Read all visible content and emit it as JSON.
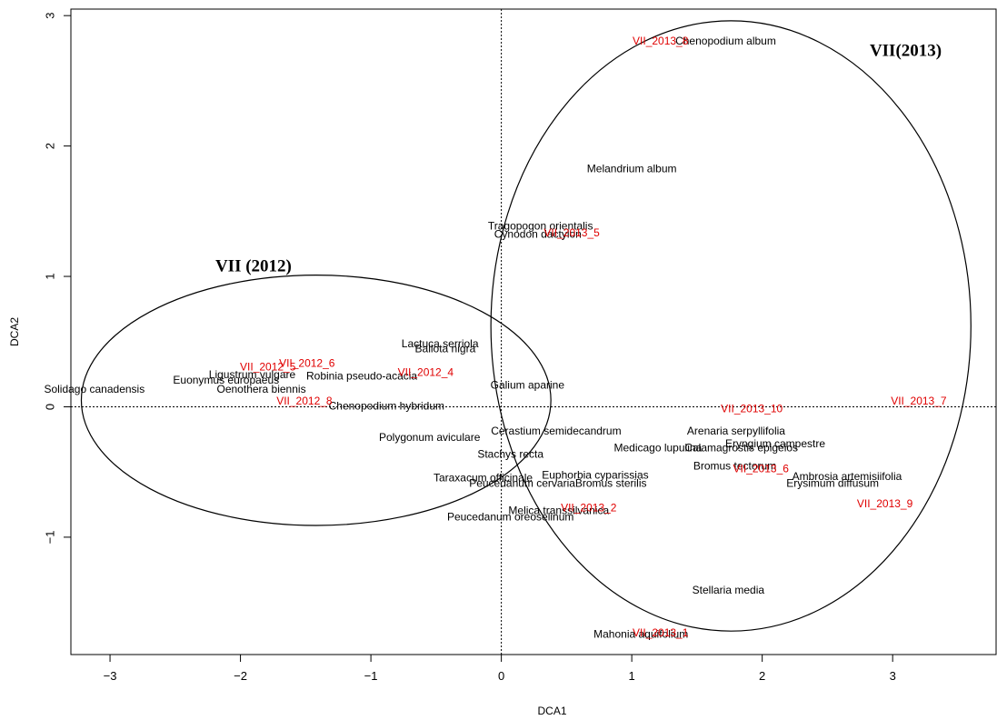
{
  "chart_data": {
    "type": "scatter",
    "title": "",
    "xlabel": "DCA1",
    "ylabel": "DCA2",
    "xlim": [
      -3.3,
      3.8
    ],
    "ylim": [
      -1.9,
      3.05
    ],
    "x_ticks": [
      -3,
      -2,
      -1,
      0,
      1,
      2,
      3
    ],
    "y_ticks": [
      -1,
      0,
      1,
      2,
      3
    ],
    "reference_lines": {
      "x": 0,
      "y": 0,
      "style": "dotted"
    },
    "colors": {
      "species": "#000000",
      "sites": "#e00000",
      "ellipse": "#000000",
      "axes": "#000000"
    },
    "group_labels": [
      {
        "text": "VII (2012)",
        "x": -1.9,
        "y": 1.07
      },
      {
        "text": "VII(2013)",
        "x": 3.1,
        "y": 2.72
      }
    ],
    "ellipses": [
      {
        "group": "VII (2012)",
        "cx": -1.42,
        "cy": 0.05,
        "rx": 1.8,
        "ry": 0.96
      },
      {
        "group": "VII(2013)",
        "cx": 1.76,
        "cy": 0.62,
        "rx": 1.84,
        "ry": 2.34
      }
    ],
    "species": [
      {
        "label": "Chenopodium album",
        "x": 1.72,
        "y": 2.8
      },
      {
        "label": "Melandrium album",
        "x": 1.0,
        "y": 1.82
      },
      {
        "label": "Tragopogon orientalis",
        "x": 0.3,
        "y": 1.38
      },
      {
        "label": "Cynodon dactylon",
        "x": 0.28,
        "y": 1.32
      },
      {
        "label": "Lactuca serriola",
        "x": -0.47,
        "y": 0.48
      },
      {
        "label": "Ballota nigra",
        "x": -0.43,
        "y": 0.44
      },
      {
        "label": "Galium aparine",
        "x": 0.2,
        "y": 0.16
      },
      {
        "label": "Robinia pseudo-acacia",
        "x": -1.07,
        "y": 0.23
      },
      {
        "label": "Oenothera biennis",
        "x": -1.84,
        "y": 0.13
      },
      {
        "label": "Euonymus europaeus",
        "x": -2.11,
        "y": 0.2
      },
      {
        "label": "Ligustrum vulgare",
        "x": -1.91,
        "y": 0.24
      },
      {
        "label": "Solidago canadensis",
        "x": -3.12,
        "y": 0.13
      },
      {
        "label": "Chenopodium hybridum",
        "x": -0.88,
        "y": 0.0
      },
      {
        "label": "Polygonum aviculare",
        "x": -0.55,
        "y": -0.24
      },
      {
        "label": "Arenaria serpyllifolia",
        "x": 1.8,
        "y": -0.19
      },
      {
        "label": "Cerastium semidecandrum",
        "x": 0.42,
        "y": -0.19
      },
      {
        "label": "Eryngium campestre",
        "x": 2.1,
        "y": -0.29
      },
      {
        "label": "Calamagrostis epigeios",
        "x": 1.84,
        "y": -0.32
      },
      {
        "label": "Medicago lupulina",
        "x": 1.2,
        "y": -0.32
      },
      {
        "label": "Stachys recta",
        "x": 0.07,
        "y": -0.37
      },
      {
        "label": "Taraxacum officinale",
        "x": -0.14,
        "y": -0.55
      },
      {
        "label": "Euphorbia cyparissias",
        "x": 0.72,
        "y": -0.53
      },
      {
        "label": "Peucedanum cervaria",
        "x": 0.16,
        "y": -0.59
      },
      {
        "label": "Bromus sterilis",
        "x": 0.84,
        "y": -0.59
      },
      {
        "label": "Bromus tectorum",
        "x": 1.79,
        "y": -0.46
      },
      {
        "label": "Ambrosia artemisiifolia",
        "x": 2.65,
        "y": -0.54
      },
      {
        "label": "Erysimum diffusum",
        "x": 2.54,
        "y": -0.59
      },
      {
        "label": "Melica transsilvanica",
        "x": 0.44,
        "y": -0.8
      },
      {
        "label": "Peucedanum oreoselinum",
        "x": 0.07,
        "y": -0.85
      },
      {
        "label": "Stellaria media",
        "x": 1.74,
        "y": -1.41
      },
      {
        "label": "Mahonia aquifolium",
        "x": 1.07,
        "y": -1.75
      }
    ],
    "sites": [
      {
        "label": "VII_2012_5",
        "x": -1.79,
        "y": 0.3
      },
      {
        "label": "VII_2012_6",
        "x": -1.49,
        "y": 0.33
      },
      {
        "label": "VII_2012_4",
        "x": -0.58,
        "y": 0.26
      },
      {
        "label": "VII_2012_8",
        "x": -1.51,
        "y": 0.04
      },
      {
        "label": "VII_2013_10",
        "x": 1.92,
        "y": -0.02
      },
      {
        "label": "VII_2013_7",
        "x": 3.2,
        "y": 0.04
      },
      {
        "label": "VII_2013_9",
        "x": 2.94,
        "y": -0.75
      },
      {
        "label": "VII_2013_6",
        "x": 1.99,
        "y": -0.48
      },
      {
        "label": "VII_2013_2",
        "x": 0.67,
        "y": -0.78
      },
      {
        "label": "VII_2013_1",
        "x": 1.22,
        "y": -1.74
      },
      {
        "label": "VII_2013_8",
        "x": 1.22,
        "y": 2.8
      },
      {
        "label": "VII_2013_5",
        "x": 0.54,
        "y": 1.33
      }
    ]
  }
}
